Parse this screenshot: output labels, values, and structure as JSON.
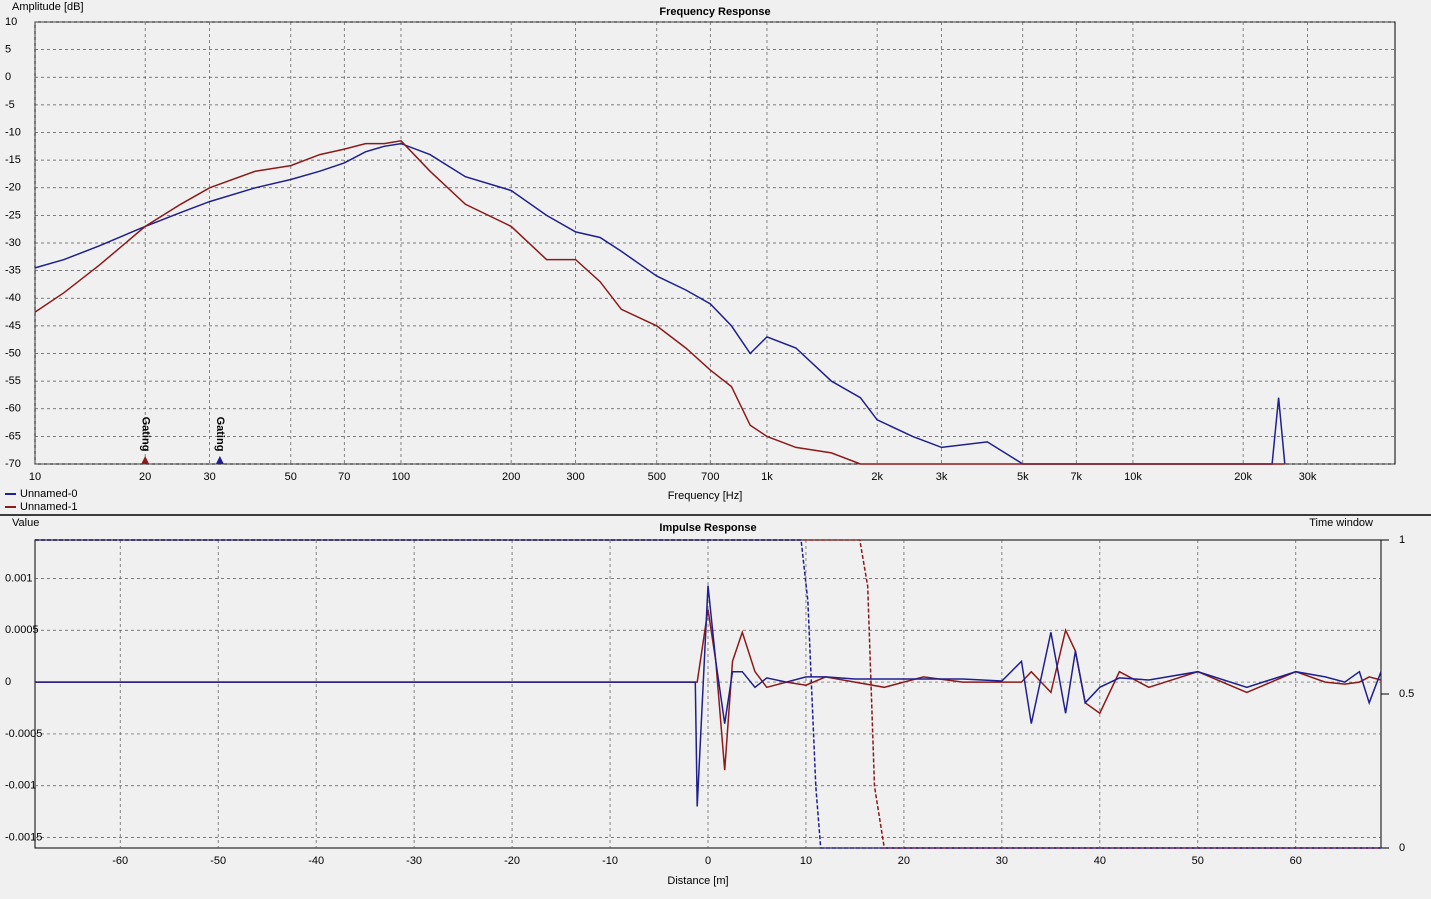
{
  "chart_data": [
    {
      "type": "line",
      "title": "Frequency Response",
      "xlabel": "Frequency [Hz]",
      "ylabel": "Amplitude [dB]",
      "xlog": true,
      "grid": true,
      "legend": "bottom-left",
      "xlim": [
        10,
        52000
      ],
      "ylim": [
        -70,
        10
      ],
      "xticks": [
        10,
        20,
        30,
        50,
        70,
        100,
        200,
        300,
        500,
        700,
        {
          "value": 1000,
          "label": "1k"
        },
        {
          "value": 2000,
          "label": "2k"
        },
        {
          "value": 3000,
          "label": "3k"
        },
        {
          "value": 5000,
          "label": "5k"
        },
        {
          "value": 7000,
          "label": "7k"
        },
        {
          "value": 10000,
          "label": "10k"
        },
        {
          "value": 20000,
          "label": "20k"
        },
        {
          "value": 30000,
          "label": "30k"
        }
      ],
      "yticks": [
        -70,
        -65,
        -60,
        -55,
        -50,
        -45,
        -40,
        -35,
        -30,
        -25,
        -20,
        -15,
        -10,
        -5,
        0,
        5,
        10
      ],
      "x": [
        10,
        12,
        15,
        20,
        25,
        30,
        40,
        50,
        60,
        70,
        80,
        90,
        100,
        120,
        150,
        200,
        250,
        300,
        350,
        400,
        500,
        600,
        700,
        800,
        900,
        1000,
        1200,
        1500,
        1800,
        2000,
        2500,
        3000,
        4000,
        5000,
        6000,
        8000,
        10000,
        12000,
        24000,
        25000,
        26000
      ],
      "series": [
        {
          "name": "Unnamed-0",
          "color": "#1f1f8f",
          "values": [
            -34.5,
            -33,
            -30.5,
            -27,
            -24.5,
            -22.5,
            -20,
            -18.5,
            -17,
            -15.5,
            -13.5,
            -12.5,
            -12,
            -14,
            -18,
            -20.5,
            -25,
            -28,
            -29,
            -31.5,
            -36,
            -38.5,
            -41,
            -45,
            -50,
            -47,
            -49,
            -55,
            -58,
            -62,
            -65,
            -67,
            -66,
            -70,
            -70,
            -70,
            -70,
            -70,
            -70,
            -58,
            -70
          ]
        },
        {
          "name": "Unnamed-1",
          "color": "#8b1a1a",
          "values": [
            -42.5,
            -39,
            -34,
            -27,
            -23,
            -20,
            -17,
            -16,
            -14,
            -13,
            -12,
            -12,
            -11.5,
            -17,
            -23,
            -27,
            -33,
            -33,
            -37,
            -42,
            -45,
            -49,
            -53,
            -56,
            -63,
            -65,
            -67,
            -68,
            -70,
            -70,
            -70,
            -70,
            -70,
            -70,
            -70,
            -70,
            -70,
            -70,
            -70,
            -70,
            -70
          ]
        }
      ],
      "annotations": [
        {
          "text": "Gating",
          "x": 20,
          "color": "#8b1a1a"
        },
        {
          "text": "Gating",
          "x": 32,
          "color": "#1f1f8f"
        }
      ]
    },
    {
      "type": "line",
      "title": "Impulse Response",
      "xlabel": "Distance [m]",
      "ylabel": "Value",
      "y2label": "Time window",
      "xlog": false,
      "grid": true,
      "xlim": [
        -68.7,
        68.7
      ],
      "ylim": [
        -0.0016,
        0.00137
      ],
      "y2lim": [
        0,
        1
      ],
      "xticks": [
        -60,
        -50,
        -40,
        -30,
        -20,
        -10,
        0,
        10,
        20,
        30,
        40,
        50,
        60
      ],
      "yticks": [
        -0.0015,
        -0.001,
        -0.0005,
        0,
        0.0005,
        0.001
      ],
      "y2ticks": [
        0,
        0.5,
        1
      ],
      "series": [
        {
          "color": "#8b1a1a",
          "axis": "y2",
          "style": "dashed",
          "x": [
            -68.7,
            15.5,
            16.3,
            17,
            18,
            68.7
          ],
          "values": [
            1,
            1,
            0.85,
            0.2,
            0,
            0
          ]
        },
        {
          "color": "#1f1f8f",
          "axis": "y2",
          "style": "dashed",
          "x": [
            -68.7,
            9.5,
            10.2,
            11,
            11.5,
            68.7
          ],
          "values": [
            1,
            1,
            0.8,
            0.2,
            0,
            0
          ]
        },
        {
          "color": "#8b1a1a",
          "x": [
            -68.7,
            -20,
            -2,
            -1.3,
            -1.1,
            0,
            0.8,
            1.7,
            2.5,
            3.5,
            4.8,
            6,
            8,
            10,
            12,
            15,
            18,
            22,
            26,
            30,
            32,
            33,
            35,
            36.5,
            37.5,
            38.5,
            40,
            42,
            45,
            50,
            55,
            60,
            63,
            65,
            66.5,
            67.5,
            68.7
          ],
          "values": [
            0,
            0,
            0,
            0,
            0,
            0.0007,
            0.0002,
            -0.00085,
            0.0002,
            0.00048,
            0.0001,
            -5e-05,
            0,
            -3e-05,
            5e-05,
            0,
            -5e-05,
            5e-05,
            0,
            0,
            0,
            0.0001,
            -0.0001,
            0.0005,
            0.0003,
            -0.0002,
            -0.0003,
            0.0001,
            -5e-05,
            0.0001,
            -0.0001,
            0.0001,
            0,
            -2e-05,
            0,
            5e-05,
            2e-05
          ]
        },
        {
          "color": "#1f1f8f",
          "x": [
            -68.7,
            -20,
            -2,
            -1.3,
            -1.1,
            0,
            0.8,
            1.7,
            2.5,
            3.5,
            4.8,
            6,
            8,
            10,
            12,
            15,
            18,
            22,
            26,
            30,
            32,
            33,
            35,
            36.5,
            37.5,
            38.5,
            40,
            42,
            45,
            50,
            55,
            60,
            63,
            65,
            66.5,
            67.5,
            68.7
          ],
          "values": [
            0,
            0,
            0,
            0,
            -0.0012,
            0.00093,
            0.0002,
            -0.0004,
            0.0001,
            0.0001,
            -5e-05,
            4e-05,
            0,
            5e-05,
            5e-05,
            3e-05,
            3e-05,
            3e-05,
            3e-05,
            1e-05,
            0.0002,
            -0.0004,
            0.00048,
            -0.0003,
            0.0003,
            -0.0002,
            -5e-05,
            4e-05,
            2e-05,
            0.0001,
            -5e-05,
            0.0001,
            5e-05,
            0,
            0.0001,
            -0.0002,
            0.0001
          ]
        }
      ]
    }
  ]
}
